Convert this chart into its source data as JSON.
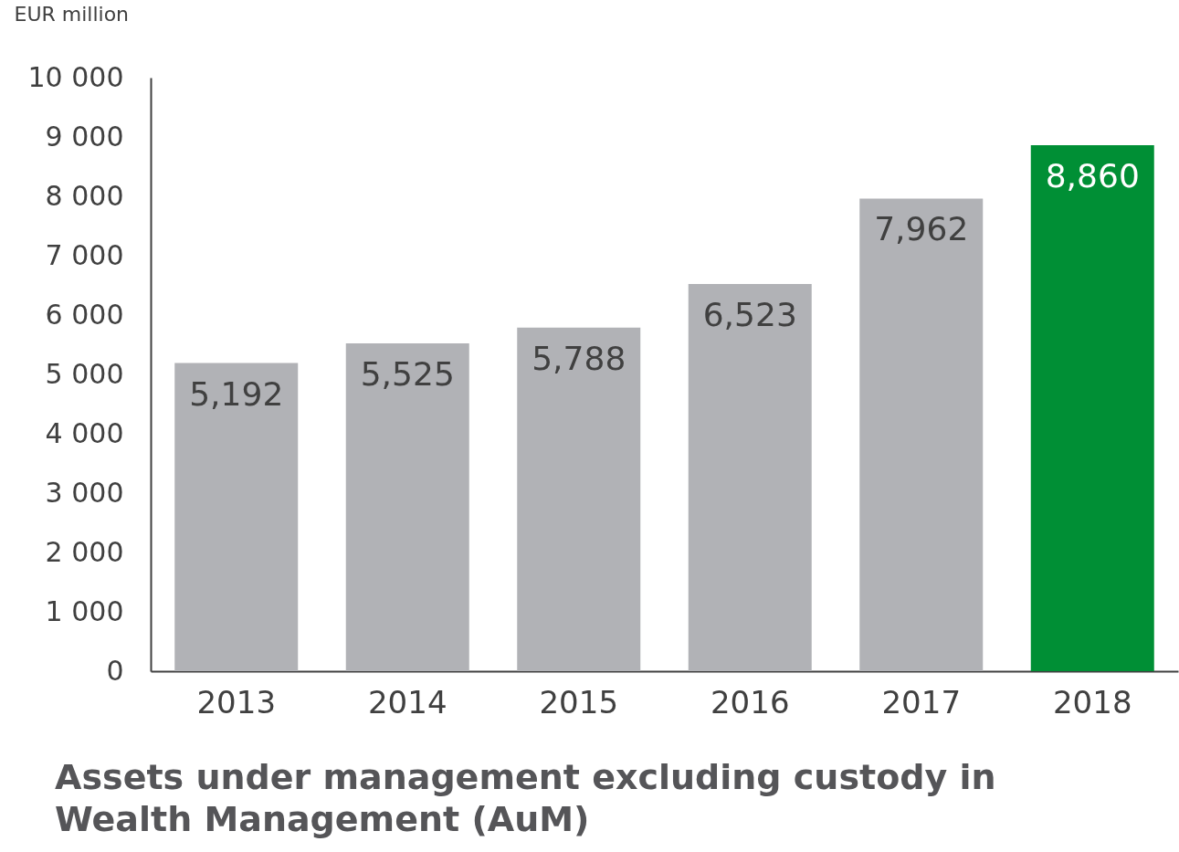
{
  "chart_data": {
    "type": "bar",
    "title": "Assets under management excluding custody in Wealth Management (AuM)",
    "ylabel": "EUR million",
    "categories": [
      "2013",
      "2014",
      "2015",
      "2016",
      "2017",
      "2018"
    ],
    "values": [
      5192,
      5525,
      5788,
      6523,
      7962,
      8860
    ],
    "colors": [
      "#b1b2b6",
      "#b1b2b6",
      "#b1b2b6",
      "#b1b2b6",
      "#b1b2b6",
      "#008f35"
    ],
    "ylim": [
      0,
      10000
    ],
    "yticks": [
      0,
      {
        "value": 1000,
        "label": "1 000"
      },
      {
        "value": 2000,
        "label": "2 000"
      },
      {
        "value": 3000,
        "label": "3 000"
      },
      {
        "value": 4000,
        "label": "4 000"
      },
      {
        "value": 5000,
        "label": "5 000"
      },
      {
        "value": 6000,
        "label": "6 000"
      },
      {
        "value": 7000,
        "label": "7 000"
      },
      {
        "value": 8000,
        "label": "8 000"
      },
      {
        "value": 9000,
        "label": "9 000"
      },
      {
        "value": 10000,
        "label": "10 000"
      }
    ],
    "value_labels": [
      "5,192",
      "5,525",
      "5,788",
      "6,523",
      "7,962",
      "8,860"
    ],
    "grid": false
  }
}
